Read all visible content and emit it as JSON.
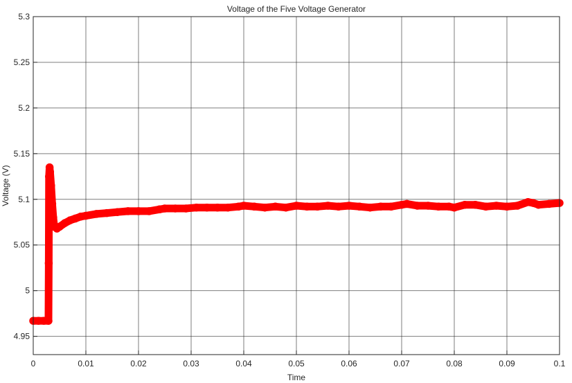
{
  "chart_data": {
    "type": "line",
    "title": "Voltage of the Five Voltage Generator",
    "xlabel": "Time",
    "ylabel": "Voltage (V)",
    "xlim": [
      0,
      0.1
    ],
    "ylim": [
      4.93,
      5.3
    ],
    "xticks": [
      0,
      0.01,
      0.02,
      0.03,
      0.04,
      0.05,
      0.06,
      0.07,
      0.08,
      0.09,
      0.1
    ],
    "xtick_labels": [
      "0",
      "0.01",
      "0.02",
      "0.03",
      "0.04",
      "0.05",
      "0.06",
      "0.07",
      "0.08",
      "0.09",
      "0.1"
    ],
    "yticks": [
      4.95,
      5,
      5.05,
      5.1,
      5.15,
      5.2,
      5.25,
      5.3
    ],
    "ytick_labels": [
      "4.95",
      "5",
      "5.05",
      "5.1",
      "5.15",
      "5.2",
      "5.25",
      "5.3"
    ],
    "grid": true,
    "series": [
      {
        "color": "#ff0000",
        "marker": "circle",
        "x": [
          0,
          0.001,
          0.002,
          0.0029,
          0.00295,
          0.003,
          0.0031,
          0.0032,
          0.0034,
          0.0036,
          0.0038,
          0.004,
          0.0045,
          0.005,
          0.006,
          0.007,
          0.008,
          0.009,
          0.01,
          0.012,
          0.014,
          0.016,
          0.018,
          0.02,
          0.022,
          0.024,
          0.025,
          0.027,
          0.029,
          0.031,
          0.033,
          0.035,
          0.037,
          0.039,
          0.04,
          0.042,
          0.044,
          0.046,
          0.048,
          0.05,
          0.052,
          0.054,
          0.056,
          0.058,
          0.06,
          0.062,
          0.064,
          0.066,
          0.068,
          0.07,
          0.071,
          0.073,
          0.075,
          0.077,
          0.079,
          0.08,
          0.082,
          0.084,
          0.086,
          0.088,
          0.09,
          0.092,
          0.094,
          0.095,
          0.096,
          0.098,
          0.1
        ],
        "y": [
          4.967,
          4.967,
          4.967,
          4.967,
          5.03,
          5.125,
          5.135,
          5.13,
          5.115,
          5.095,
          5.08,
          5.07,
          5.068,
          5.07,
          5.074,
          5.077,
          5.079,
          5.081,
          5.082,
          5.084,
          5.085,
          5.086,
          5.087,
          5.087,
          5.087,
          5.089,
          5.09,
          5.09,
          5.09,
          5.091,
          5.091,
          5.091,
          5.091,
          5.092,
          5.093,
          5.092,
          5.091,
          5.092,
          5.091,
          5.093,
          5.092,
          5.092,
          5.093,
          5.092,
          5.093,
          5.092,
          5.091,
          5.092,
          5.092,
          5.094,
          5.095,
          5.093,
          5.093,
          5.092,
          5.092,
          5.091,
          5.094,
          5.094,
          5.092,
          5.093,
          5.092,
          5.093,
          5.097,
          5.096,
          5.094,
          5.095,
          5.096
        ]
      }
    ]
  }
}
